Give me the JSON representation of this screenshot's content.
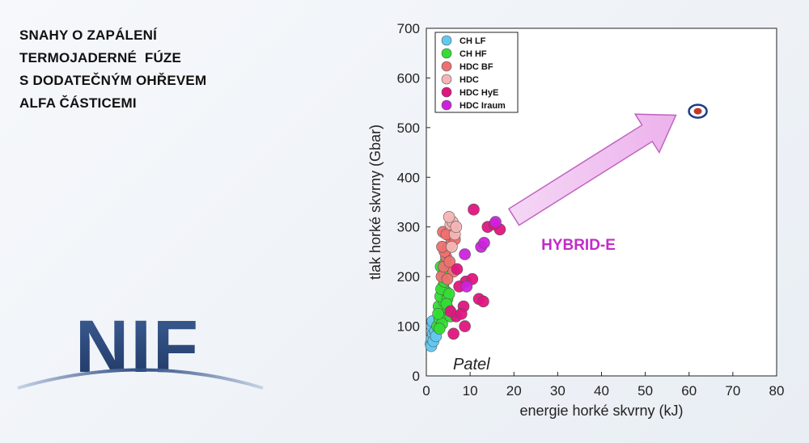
{
  "slide": {
    "title_lines": [
      "SNAHY O ZAPÁLENÍ",
      "TERMOJADERNÉ  FÚZE",
      "S DODATEČNÝM OHŘEVEM",
      "ALFA ČÁSTICEMI"
    ],
    "logo_text": "NIF"
  },
  "chart_data": {
    "type": "scatter",
    "xlabel": "energie horké skvrny (kJ)",
    "ylabel": "tlak horké skvrny (Gbar)",
    "xlim": [
      0,
      80
    ],
    "ylim": [
      0,
      700
    ],
    "xticks": [
      0,
      10,
      20,
      30,
      40,
      50,
      60,
      70,
      80
    ],
    "yticks": [
      0,
      100,
      200,
      300,
      400,
      500,
      600,
      700
    ],
    "grid": false,
    "legend_position": "top-left",
    "annotations": {
      "arrow_label": "HYBRID-E",
      "author": "Patel",
      "arrow_from": [
        20,
        320
      ],
      "arrow_to": [
        57,
        525
      ]
    },
    "highlight_point": {
      "x": 62,
      "y": 533
    },
    "series": [
      {
        "name": "CH LF",
        "color": "#63c8f0",
        "points": [
          [
            1.0,
            65
          ],
          [
            1.2,
            75
          ],
          [
            1.5,
            85
          ],
          [
            1.8,
            95
          ],
          [
            1.3,
            100
          ],
          [
            2.0,
            90
          ],
          [
            1.1,
            60
          ],
          [
            1.6,
            70
          ],
          [
            2.2,
            80
          ],
          [
            1.4,
            110
          ]
        ]
      },
      {
        "name": "CH HF",
        "color": "#33dd33",
        "points": [
          [
            2.5,
            100
          ],
          [
            3.0,
            115
          ],
          [
            3.5,
            130
          ],
          [
            2.8,
            140
          ],
          [
            4.0,
            150
          ],
          [
            3.2,
            160
          ],
          [
            4.5,
            170
          ],
          [
            3.8,
            180
          ],
          [
            4.2,
            120
          ],
          [
            5.0,
            135
          ],
          [
            3.6,
            105
          ],
          [
            4.8,
            155
          ],
          [
            2.7,
            125
          ],
          [
            3.4,
            175
          ],
          [
            4.1,
            190
          ],
          [
            5.2,
            165
          ],
          [
            3.9,
            210
          ],
          [
            4.6,
            145
          ],
          [
            3.0,
            95
          ],
          [
            5.5,
            120
          ],
          [
            3.3,
            220
          ],
          [
            4.4,
            230
          ]
        ]
      },
      {
        "name": "HDC BF",
        "color": "#ee7070",
        "points": [
          [
            3.5,
            200
          ],
          [
            4.0,
            220
          ],
          [
            4.5,
            240
          ],
          [
            5.0,
            260
          ],
          [
            5.5,
            280
          ],
          [
            6.0,
            300
          ],
          [
            4.2,
            250
          ],
          [
            5.8,
            270
          ],
          [
            3.8,
            290
          ],
          [
            6.2,
            210
          ],
          [
            4.8,
            195
          ],
          [
            5.3,
            230
          ],
          [
            6.5,
            275
          ],
          [
            3.6,
            260
          ],
          [
            4.6,
            285
          ]
        ]
      },
      {
        "name": "HDC",
        "color": "#f5b5b5",
        "points": [
          [
            5.5,
            305
          ],
          [
            6.0,
            310
          ],
          [
            6.5,
            285
          ],
          [
            5.2,
            320
          ],
          [
            6.8,
            300
          ],
          [
            5.8,
            260
          ]
        ]
      },
      {
        "name": "HDC HyE",
        "color": "#e0157f",
        "points": [
          [
            10.8,
            335
          ],
          [
            14.0,
            300
          ],
          [
            15.5,
            305
          ],
          [
            16.8,
            295
          ],
          [
            7.0,
            215
          ],
          [
            9.0,
            190
          ],
          [
            10.5,
            195
          ],
          [
            8.5,
            140
          ],
          [
            12.0,
            155
          ],
          [
            13.0,
            150
          ],
          [
            6.8,
            120
          ],
          [
            8.0,
            125
          ],
          [
            6.2,
            85
          ],
          [
            8.8,
            100
          ],
          [
            7.5,
            180
          ],
          [
            5.5,
            130
          ]
        ]
      },
      {
        "name": "HDC Iraum",
        "color": "#cc22dd",
        "points": [
          [
            15.8,
            310
          ],
          [
            12.5,
            260
          ],
          [
            13.2,
            268
          ],
          [
            8.8,
            245
          ],
          [
            9.2,
            180
          ]
        ]
      }
    ]
  }
}
